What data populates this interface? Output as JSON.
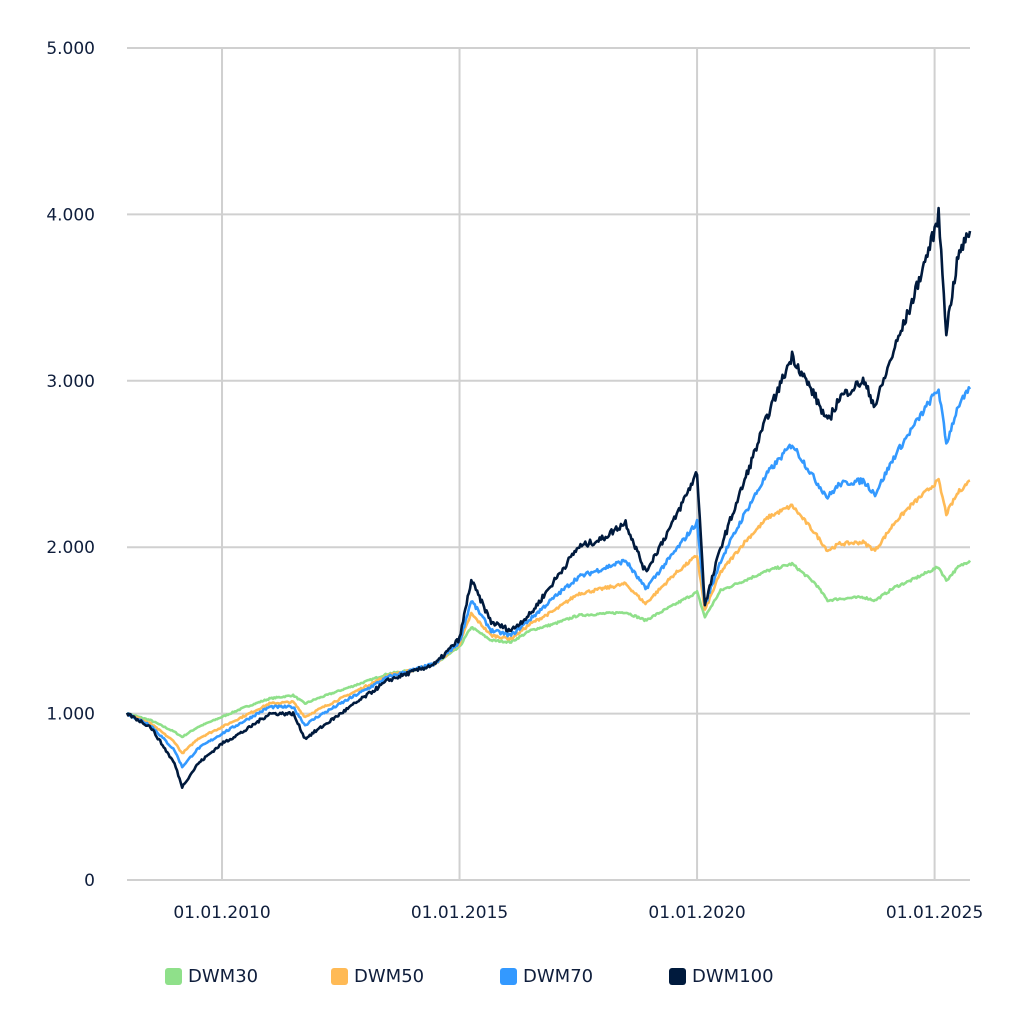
{
  "chart_data": {
    "type": "line",
    "title": "",
    "xlabel": "",
    "ylabel": "",
    "ylim": [
      0,
      5000
    ],
    "xlim": [
      "2008-01-01",
      "2025-09-30"
    ],
    "grid": true,
    "legend_placement": "bottom",
    "y_ticks": [
      "0",
      "1.000",
      "2.000",
      "3.000",
      "4.000",
      "5.000"
    ],
    "y_tick_values": [
      0,
      1000,
      2000,
      3000,
      4000,
      5000
    ],
    "x_ticks": [
      "01.01.2010",
      "01.01.2015",
      "01.01.2020",
      "01.01.2025"
    ],
    "x_tick_values": [
      "2010-01-01",
      "2015-01-01",
      "2020-01-01",
      "2025-01-01"
    ],
    "x": [
      "2008-01-01",
      "2008-07-01",
      "2009-01-01",
      "2009-03-01",
      "2009-07-01",
      "2010-01-01",
      "2010-07-01",
      "2011-01-01",
      "2011-07-01",
      "2011-10-01",
      "2012-01-01",
      "2012-07-01",
      "2013-01-01",
      "2013-07-01",
      "2014-01-01",
      "2014-07-01",
      "2015-01-01",
      "2015-04-01",
      "2015-09-01",
      "2016-02-01",
      "2016-07-01",
      "2017-01-01",
      "2017-07-01",
      "2018-01-01",
      "2018-07-01",
      "2018-12-01",
      "2019-07-01",
      "2020-01-01",
      "2020-03-01",
      "2020-07-01",
      "2021-01-01",
      "2021-07-01",
      "2022-01-01",
      "2022-07-01",
      "2022-10-01",
      "2023-01-01",
      "2023-07-01",
      "2023-10-01",
      "2024-03-01",
      "2024-07-01",
      "2025-01-01",
      "2025-02-01",
      "2025-04-01",
      "2025-07-01",
      "2025-09-30"
    ],
    "series": [
      {
        "name": "DWM30",
        "color": "#8fe08a",
        "values": [
          1000,
          960,
          890,
          860,
          920,
          980,
          1040,
          1090,
          1110,
          1060,
          1090,
          1140,
          1190,
          1240,
          1260,
          1300,
          1400,
          1520,
          1440,
          1430,
          1500,
          1540,
          1590,
          1600,
          1610,
          1560,
          1650,
          1730,
          1580,
          1740,
          1800,
          1860,
          1900,
          1780,
          1680,
          1690,
          1700,
          1680,
          1760,
          1800,
          1870,
          1880,
          1800,
          1880,
          1920
        ]
      },
      {
        "name": "DWM50",
        "color": "#ffba55",
        "values": [
          1000,
          940,
          830,
          760,
          850,
          920,
          990,
          1060,
          1070,
          980,
          1020,
          1090,
          1160,
          1230,
          1260,
          1300,
          1420,
          1600,
          1470,
          1450,
          1540,
          1620,
          1720,
          1750,
          1780,
          1660,
          1830,
          1950,
          1620,
          1850,
          2030,
          2180,
          2250,
          2080,
          1980,
          2020,
          2030,
          1980,
          2150,
          2250,
          2380,
          2400,
          2200,
          2330,
          2400
        ]
      },
      {
        "name": "DWM70",
        "color": "#3399ff",
        "values": [
          1000,
          930,
          780,
          680,
          790,
          880,
          960,
          1040,
          1040,
          930,
          980,
          1060,
          1140,
          1220,
          1260,
          1300,
          1430,
          1680,
          1500,
          1470,
          1570,
          1700,
          1820,
          1870,
          1920,
          1750,
          1960,
          2150,
          1650,
          1920,
          2200,
          2450,
          2620,
          2400,
          2300,
          2380,
          2400,
          2320,
          2550,
          2700,
          2920,
          2950,
          2620,
          2850,
          2950
        ]
      },
      {
        "name": "DWM100",
        "color": "#001a3d",
        "values": [
          1000,
          920,
          700,
          560,
          700,
          820,
          900,
          1000,
          1000,
          850,
          900,
          1000,
          1100,
          1200,
          1250,
          1300,
          1450,
          1800,
          1550,
          1500,
          1600,
          1800,
          2000,
          2050,
          2150,
          1850,
          2150,
          2450,
          1650,
          2000,
          2400,
          2800,
          3150,
          2900,
          2750,
          2900,
          3000,
          2850,
          3200,
          3450,
          3900,
          4000,
          3300,
          3750,
          3900
        ]
      }
    ]
  }
}
